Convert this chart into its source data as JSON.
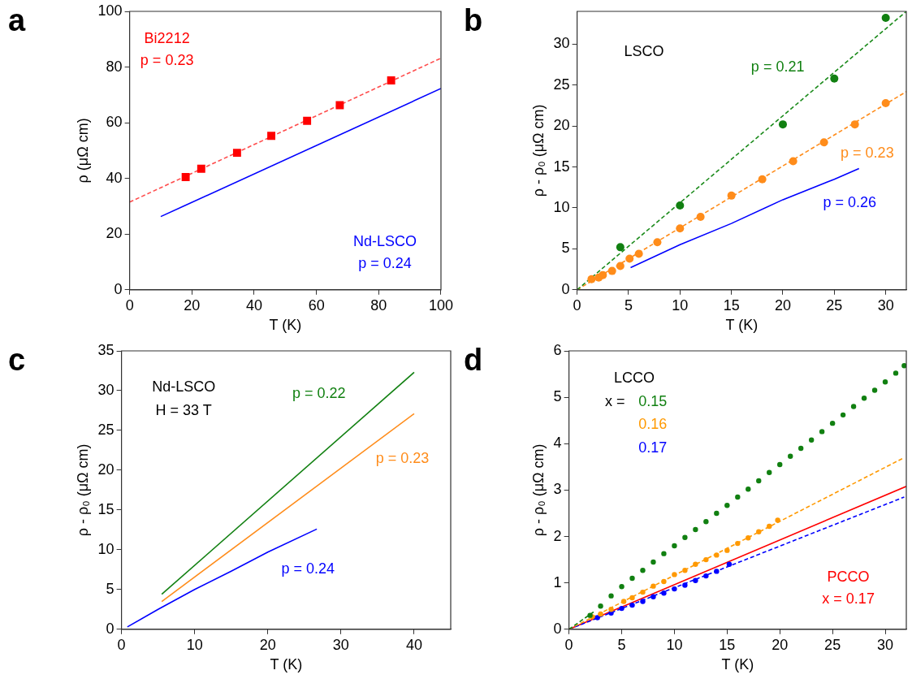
{
  "chart_data": [
    {
      "type": "scatter",
      "title": "a",
      "xlabel": "T (K)",
      "ylabel": "ρ (μΩ cm)",
      "xlim": [
        0,
        100
      ],
      "xticks": [
        0,
        20,
        40,
        60,
        80,
        100
      ],
      "ylim": [
        0,
        100
      ],
      "yticks": [
        0,
        20,
        40,
        60,
        80,
        100
      ],
      "grid": false,
      "legend": false,
      "series": [
        {
          "type": "line",
          "line_style": "dashed",
          "color": "#ff4d4d",
          "x": [
            0,
            100
          ],
          "values": [
            31.5,
            83.2
          ]
        },
        {
          "type": "scatter",
          "marker": "square",
          "name": "Bi2212\np = 0.23",
          "color": "#ff0000",
          "x": [
            18,
            23,
            34.5,
            45.5,
            57,
            67.5,
            84
          ],
          "values": [
            40.5,
            43.5,
            49.2,
            55.3,
            60.7,
            66.3,
            75.2
          ]
        },
        {
          "type": "line",
          "line_style": "solid",
          "name": "Nd-LSCO\np = 0.24",
          "color": "#0000ff",
          "x": [
            10,
            100
          ],
          "values": [
            26.3,
            72.3
          ]
        }
      ]
    },
    {
      "type": "scatter",
      "title": "b",
      "xlabel": "T (K)",
      "ylabel": "ρ - ρ₀ (μΩ cm)",
      "xlim": [
        0,
        32
      ],
      "xticks": [
        0,
        5,
        10,
        15,
        20,
        25,
        30
      ],
      "ylim": [
        0,
        34
      ],
      "yticks": [
        0,
        5,
        10,
        15,
        20,
        25,
        30
      ],
      "grid": false,
      "legend": false,
      "annotations": [
        "LSCO"
      ],
      "series": [
        {
          "type": "line",
          "line_style": "dashed",
          "color": "#1a8a1a",
          "x": [
            0,
            32
          ],
          "values": [
            0,
            34
          ]
        },
        {
          "type": "scatter",
          "marker": "circle",
          "name": "p = 0.21",
          "color": "#118011",
          "x": [
            4.2,
            10,
            20,
            25,
            30
          ],
          "values": [
            5.2,
            10.3,
            20.2,
            25.8,
            33.2
          ]
        },
        {
          "type": "line",
          "line_style": "dashed",
          "color": "#ff8c1a",
          "x": [
            0,
            32
          ],
          "values": [
            0,
            24.2
          ]
        },
        {
          "type": "scatter",
          "marker": "circle",
          "name": "p = 0.23",
          "color": "#ff8c1a",
          "x": [
            1.4,
            2.1,
            2.5,
            3.4,
            4.2,
            5.1,
            6,
            7.8,
            10,
            12,
            15,
            18,
            21,
            24,
            27,
            30
          ],
          "values": [
            1.3,
            1.5,
            1.8,
            2.3,
            2.9,
            3.8,
            4.4,
            5.8,
            7.5,
            8.9,
            11.5,
            13.5,
            15.7,
            18,
            20.2,
            22.8
          ]
        },
        {
          "type": "line",
          "line_style": "solid",
          "name": "p = 0.26",
          "color": "#0000ff",
          "x": [
            5.2,
            10,
            15,
            20,
            25,
            27.4
          ],
          "values": [
            2.7,
            5.5,
            8.1,
            11,
            13.5,
            14.8
          ]
        }
      ]
    },
    {
      "type": "scatter",
      "title": "c",
      "xlabel": "T (K)",
      "ylabel": "ρ - ρ₀ (μΩ cm)",
      "xlim": [
        0,
        45
      ],
      "xticks": [
        0,
        10,
        20,
        30,
        40
      ],
      "ylim": [
        0,
        35
      ],
      "yticks": [
        0,
        5,
        10,
        15,
        20,
        25,
        30,
        35
      ],
      "grid": false,
      "legend": false,
      "annotations": [
        "Nd-LSCO",
        "H = 33 T"
      ],
      "series": [
        {
          "type": "line",
          "line_style": "solid",
          "name": "p = 0.22",
          "color": "#118011",
          "x": [
            5.5,
            40
          ],
          "values": [
            4.4,
            32.3
          ]
        },
        {
          "type": "line",
          "line_style": "solid",
          "name": "p = 0.23",
          "color": "#ff8c1a",
          "x": [
            5.5,
            40
          ],
          "values": [
            3.5,
            27.1
          ]
        },
        {
          "type": "line",
          "line_style": "solid",
          "name": "p = 0.24",
          "color": "#0000ff",
          "x": [
            0.8,
            5,
            10,
            15,
            20,
            26.7
          ],
          "values": [
            0.3,
            2.5,
            5,
            7.3,
            9.7,
            12.6
          ]
        }
      ]
    },
    {
      "type": "scatter",
      "title": "d",
      "xlabel": "T (K)",
      "ylabel": "ρ - ρ₀ (μΩ cm)",
      "xlim": [
        0,
        32
      ],
      "xticks": [
        0,
        5,
        10,
        15,
        20,
        25,
        30
      ],
      "ylim": [
        0,
        6
      ],
      "yticks": [
        0,
        1,
        2,
        3,
        4,
        5,
        6
      ],
      "grid": false,
      "legend": false,
      "annotations": [
        "LCCO",
        "x ="
      ],
      "series": [
        {
          "type": "line",
          "line_style": "dashed",
          "color": "#118011",
          "x": [
            0,
            2.5
          ],
          "values": [
            0,
            0.4
          ]
        },
        {
          "type": "scatter",
          "marker": "circle",
          "name": "0.15",
          "color": "#118011",
          "x": [
            2,
            3,
            4,
            5,
            6,
            7,
            8,
            9,
            10,
            11,
            12,
            13,
            14,
            15,
            16,
            17,
            18,
            19,
            20,
            21,
            22,
            23,
            24,
            25,
            26,
            27,
            28,
            29,
            30,
            31,
            31.8
          ],
          "values": [
            0.3,
            0.5,
            0.72,
            0.92,
            1.1,
            1.27,
            1.45,
            1.63,
            1.8,
            1.98,
            2.15,
            2.32,
            2.5,
            2.67,
            2.85,
            3.02,
            3.2,
            3.38,
            3.55,
            3.73,
            3.9,
            4.08,
            4.26,
            4.44,
            4.62,
            4.8,
            4.98,
            5.15,
            5.33,
            5.52,
            5.68
          ]
        },
        {
          "type": "line",
          "line_style": "dashed",
          "color": "#ff9900",
          "x": [
            0,
            31.8
          ],
          "values": [
            0,
            3.7
          ]
        },
        {
          "type": "scatter",
          "marker": "circle",
          "name": "0.16",
          "color": "#ff9900",
          "x": [
            2.2,
            3,
            4,
            5.2,
            6,
            7,
            8,
            9,
            10,
            11,
            12,
            13,
            14,
            15,
            16,
            17,
            18,
            19,
            19.8
          ],
          "values": [
            0.27,
            0.33,
            0.43,
            0.6,
            0.68,
            0.8,
            0.93,
            1.03,
            1.18,
            1.27,
            1.4,
            1.5,
            1.6,
            1.7,
            1.85,
            1.97,
            2.1,
            2.22,
            2.35
          ]
        },
        {
          "type": "line",
          "line_style": "dashed",
          "color": "#0000ff",
          "x": [
            0,
            31.8
          ],
          "values": [
            0,
            2.85
          ]
        },
        {
          "type": "scatter",
          "marker": "circle",
          "name": "0.17",
          "color": "#0000ff",
          "x": [
            2.7,
            4,
            5,
            6,
            7,
            8,
            9,
            10,
            11,
            12,
            13,
            14,
            15.2
          ],
          "values": [
            0.25,
            0.35,
            0.45,
            0.52,
            0.6,
            0.7,
            0.78,
            0.87,
            0.95,
            1.05,
            1.15,
            1.25,
            1.4
          ]
        },
        {
          "type": "line",
          "line_style": "solid",
          "name": "PCCO\nx = 0.17",
          "color": "#ff0000",
          "x": [
            0,
            32
          ],
          "values": [
            0,
            3.08
          ]
        }
      ]
    }
  ]
}
